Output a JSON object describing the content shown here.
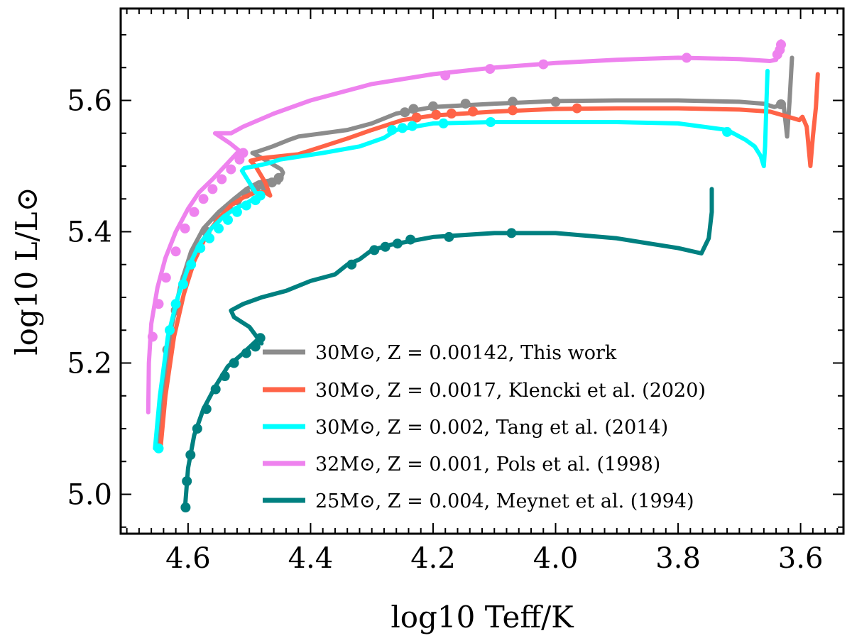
{
  "chart_data": {
    "type": "line",
    "title": "",
    "xlabel": "log10 Teff/K",
    "ylabel": "log10 L/L⊙",
    "xlim": [
      4.71,
      3.53
    ],
    "ylim": [
      4.94,
      5.74
    ],
    "x_reversed": true,
    "x_ticks": [
      "4.6",
      "4.4",
      "4.2",
      "4.0",
      "3.8",
      "3.6"
    ],
    "y_ticks": [
      "5.0",
      "5.2",
      "5.4",
      "5.6"
    ],
    "legend_position": "lower-right",
    "series": [
      {
        "name": "gray",
        "label": "30M⊙, Z = 0.00142, This work",
        "color": "#8c8c8c",
        "line": [
          [
            4.65,
            5.07
          ],
          [
            4.642,
            5.16
          ],
          [
            4.628,
            5.25
          ],
          [
            4.612,
            5.32
          ],
          [
            4.595,
            5.37
          ],
          [
            4.575,
            5.405
          ],
          [
            4.55,
            5.43
          ],
          [
            4.525,
            5.45
          ],
          [
            4.505,
            5.465
          ],
          [
            4.485,
            5.475
          ],
          [
            4.467,
            5.478
          ],
          [
            4.452,
            5.475
          ],
          [
            4.445,
            5.49
          ],
          [
            4.448,
            5.495
          ],
          [
            4.475,
            5.51
          ],
          [
            4.495,
            5.52
          ],
          [
            4.487,
            5.522
          ],
          [
            4.462,
            5.53
          ],
          [
            4.435,
            5.54
          ],
          [
            4.42,
            5.545
          ],
          [
            4.38,
            5.55
          ],
          [
            4.34,
            5.555
          ],
          [
            4.3,
            5.565
          ],
          [
            4.26,
            5.58
          ],
          [
            4.2,
            5.59
          ],
          [
            4.1,
            5.595
          ],
          [
            4.0,
            5.599
          ],
          [
            3.9,
            5.6
          ],
          [
            3.8,
            5.6
          ],
          [
            3.7,
            5.598
          ],
          [
            3.66,
            5.595
          ],
          [
            3.643,
            5.59
          ],
          [
            3.628,
            5.595
          ],
          [
            3.622,
            5.545
          ],
          [
            3.618,
            5.6
          ],
          [
            3.614,
            5.665
          ]
        ],
        "markers": [
          [
            4.634,
            5.22
          ],
          [
            4.62,
            5.28
          ],
          [
            4.604,
            5.33
          ],
          [
            4.588,
            5.37
          ],
          [
            4.57,
            5.4
          ],
          [
            4.552,
            5.42
          ],
          [
            4.535,
            5.435
          ],
          [
            4.52,
            5.448
          ],
          [
            4.505,
            5.458
          ],
          [
            4.49,
            5.466
          ],
          [
            4.476,
            5.47
          ],
          [
            4.463,
            5.475
          ],
          [
            4.452,
            5.482
          ],
          [
            4.246,
            5.582
          ],
          [
            4.232,
            5.587
          ],
          [
            4.2,
            5.591
          ],
          [
            4.147,
            5.595
          ],
          [
            4.07,
            5.598
          ],
          [
            4.0,
            5.598
          ],
          [
            3.632,
            5.594
          ]
        ]
      },
      {
        "name": "tomato",
        "label": "30M⊙, Z = 0.0017, Klencki et al. (2020)",
        "color": "#ff6347",
        "line": [
          [
            4.645,
            5.07
          ],
          [
            4.637,
            5.15
          ],
          [
            4.623,
            5.24
          ],
          [
            4.607,
            5.305
          ],
          [
            4.59,
            5.355
          ],
          [
            4.57,
            5.395
          ],
          [
            4.55,
            5.42
          ],
          [
            4.53,
            5.44
          ],
          [
            4.51,
            5.452
          ],
          [
            4.49,
            5.46
          ],
          [
            4.474,
            5.46
          ],
          [
            4.466,
            5.455
          ],
          [
            4.474,
            5.475
          ],
          [
            4.49,
            5.5
          ],
          [
            4.498,
            5.508
          ],
          [
            4.48,
            5.512
          ],
          [
            4.45,
            5.515
          ],
          [
            4.42,
            5.518
          ],
          [
            4.38,
            5.53
          ],
          [
            4.34,
            5.542
          ],
          [
            4.3,
            5.555
          ],
          [
            4.25,
            5.57
          ],
          [
            4.2,
            5.577
          ],
          [
            4.1,
            5.583
          ],
          [
            4.0,
            5.587
          ],
          [
            3.9,
            5.588
          ],
          [
            3.8,
            5.588
          ],
          [
            3.7,
            5.586
          ],
          [
            3.65,
            5.583
          ],
          [
            3.62,
            5.575
          ],
          [
            3.602,
            5.57
          ],
          [
            3.597,
            5.575
          ],
          [
            3.59,
            5.56
          ],
          [
            3.587,
            5.53
          ],
          [
            3.584,
            5.5
          ],
          [
            3.58,
            5.545
          ],
          [
            3.575,
            5.59
          ],
          [
            3.572,
            5.64
          ]
        ],
        "markers": [
          [
            4.227,
            5.574
          ],
          [
            4.195,
            5.578
          ],
          [
            4.17,
            5.58
          ],
          [
            4.135,
            5.583
          ],
          [
            4.07,
            5.585
          ],
          [
            3.965,
            5.588
          ]
        ]
      },
      {
        "name": "cyan",
        "label": "30M⊙, Z = 0.002, Tang et al. (2014)",
        "color": "#00ffff",
        "line": [
          [
            4.654,
            5.07
          ],
          [
            4.646,
            5.15
          ],
          [
            4.633,
            5.24
          ],
          [
            4.617,
            5.3
          ],
          [
            4.6,
            5.345
          ],
          [
            4.582,
            5.38
          ],
          [
            4.562,
            5.405
          ],
          [
            4.542,
            5.423
          ],
          [
            4.522,
            5.436
          ],
          [
            4.505,
            5.443
          ],
          [
            4.49,
            5.452
          ],
          [
            4.48,
            5.455
          ],
          [
            4.49,
            5.46
          ],
          [
            4.5,
            5.475
          ],
          [
            4.512,
            5.493
          ],
          [
            4.508,
            5.497
          ],
          [
            4.49,
            5.5
          ],
          [
            4.47,
            5.504
          ],
          [
            4.45,
            5.51
          ],
          [
            4.38,
            5.52
          ],
          [
            4.32,
            5.53
          ],
          [
            4.28,
            5.543
          ],
          [
            4.26,
            5.555
          ],
          [
            4.2,
            5.565
          ],
          [
            4.1,
            5.567
          ],
          [
            4.0,
            5.567
          ],
          [
            3.9,
            5.567
          ],
          [
            3.8,
            5.565
          ],
          [
            3.72,
            5.555
          ],
          [
            3.69,
            5.54
          ],
          [
            3.675,
            5.53
          ],
          [
            3.665,
            5.515
          ],
          [
            3.66,
            5.5
          ],
          [
            3.658,
            5.53
          ],
          [
            3.656,
            5.59
          ],
          [
            3.654,
            5.645
          ]
        ],
        "markers": [
          [
            4.648,
            5.07
          ],
          [
            4.63,
            5.25
          ],
          [
            4.62,
            5.29
          ],
          [
            4.608,
            5.32
          ],
          [
            4.595,
            5.35
          ],
          [
            4.58,
            5.375
          ],
          [
            4.565,
            5.39
          ],
          [
            4.55,
            5.405
          ],
          [
            4.535,
            5.418
          ],
          [
            4.52,
            5.43
          ],
          [
            4.505,
            5.44
          ],
          [
            4.49,
            5.448
          ],
          [
            4.482,
            5.455
          ],
          [
            4.267,
            5.555
          ],
          [
            4.25,
            5.558
          ],
          [
            4.234,
            5.561
          ],
          [
            4.183,
            5.565
          ],
          [
            4.106,
            5.567
          ],
          [
            3.72,
            5.552
          ]
        ]
      },
      {
        "name": "violet",
        "label": "32M⊙, Z = 0.001, Pols et al. (1998)",
        "color": "#ee82ee",
        "line": [
          [
            4.665,
            5.125
          ],
          [
            4.664,
            5.2
          ],
          [
            4.66,
            5.26
          ],
          [
            4.65,
            5.315
          ],
          [
            4.637,
            5.36
          ],
          [
            4.62,
            5.4
          ],
          [
            4.6,
            5.435
          ],
          [
            4.582,
            5.46
          ],
          [
            4.56,
            5.48
          ],
          [
            4.54,
            5.5
          ],
          [
            4.52,
            5.52
          ],
          [
            4.512,
            5.52
          ],
          [
            4.532,
            5.535
          ],
          [
            4.556,
            5.55
          ],
          [
            4.53,
            5.55
          ],
          [
            4.51,
            5.56
          ],
          [
            4.46,
            5.58
          ],
          [
            4.4,
            5.6
          ],
          [
            4.3,
            5.625
          ],
          [
            4.2,
            5.64
          ],
          [
            4.1,
            5.65
          ],
          [
            4.0,
            5.657
          ],
          [
            3.9,
            5.662
          ],
          [
            3.8,
            5.665
          ],
          [
            3.7,
            5.663
          ],
          [
            3.65,
            5.66
          ],
          [
            3.64,
            5.662
          ],
          [
            3.635,
            5.675
          ],
          [
            3.632,
            5.69
          ],
          [
            3.632,
            5.68
          ],
          [
            3.634,
            5.67
          ]
        ],
        "markers": [
          [
            4.658,
            5.24
          ],
          [
            4.648,
            5.29
          ],
          [
            4.636,
            5.33
          ],
          [
            4.62,
            5.37
          ],
          [
            4.605,
            5.405
          ],
          [
            4.59,
            5.43
          ],
          [
            4.575,
            5.45
          ],
          [
            4.56,
            5.465
          ],
          [
            4.545,
            5.48
          ],
          [
            4.53,
            5.495
          ],
          [
            4.516,
            5.51
          ],
          [
            4.51,
            5.52
          ],
          [
            4.18,
            5.638
          ],
          [
            4.107,
            5.648
          ],
          [
            4.02,
            5.655
          ],
          [
            3.786,
            5.665
          ],
          [
            3.638,
            5.67
          ],
          [
            3.632,
            5.685
          ],
          [
            3.634,
            5.677
          ]
        ]
      },
      {
        "name": "teal",
        "label": "25M⊙, Z = 0.004, Meynet et al. (1994)",
        "color": "#008080",
        "line": [
          [
            4.605,
            4.98
          ],
          [
            4.6,
            5.04
          ],
          [
            4.59,
            5.09
          ],
          [
            4.575,
            5.13
          ],
          [
            4.555,
            5.165
          ],
          [
            4.535,
            5.195
          ],
          [
            4.51,
            5.215
          ],
          [
            4.485,
            5.237
          ],
          [
            4.48,
            5.23
          ],
          [
            4.5,
            5.255
          ],
          [
            4.525,
            5.27
          ],
          [
            4.53,
            5.28
          ],
          [
            4.51,
            5.29
          ],
          [
            4.48,
            5.3
          ],
          [
            4.44,
            5.31
          ],
          [
            4.4,
            5.325
          ],
          [
            4.36,
            5.335
          ],
          [
            4.34,
            5.35
          ],
          [
            4.32,
            5.358
          ],
          [
            4.3,
            5.372
          ],
          [
            4.27,
            5.38
          ],
          [
            4.2,
            5.392
          ],
          [
            4.1,
            5.398
          ],
          [
            4.0,
            5.398
          ],
          [
            3.9,
            5.39
          ],
          [
            3.8,
            5.375
          ],
          [
            3.762,
            5.367
          ],
          [
            3.75,
            5.39
          ],
          [
            3.745,
            5.43
          ],
          [
            3.745,
            5.465
          ]
        ],
        "markers": [
          [
            4.604,
            4.98
          ],
          [
            4.602,
            5.02
          ],
          [
            4.596,
            5.06
          ],
          [
            4.585,
            5.1
          ],
          [
            4.57,
            5.13
          ],
          [
            4.555,
            5.16
          ],
          [
            4.54,
            5.18
          ],
          [
            4.525,
            5.2
          ],
          [
            4.505,
            5.215
          ],
          [
            4.49,
            5.225
          ],
          [
            4.482,
            5.238
          ],
          [
            4.333,
            5.35
          ],
          [
            4.296,
            5.372
          ],
          [
            4.278,
            5.377
          ],
          [
            4.258,
            5.382
          ],
          [
            4.237,
            5.388
          ],
          [
            4.174,
            5.392
          ],
          [
            4.072,
            5.398
          ]
        ]
      }
    ]
  }
}
